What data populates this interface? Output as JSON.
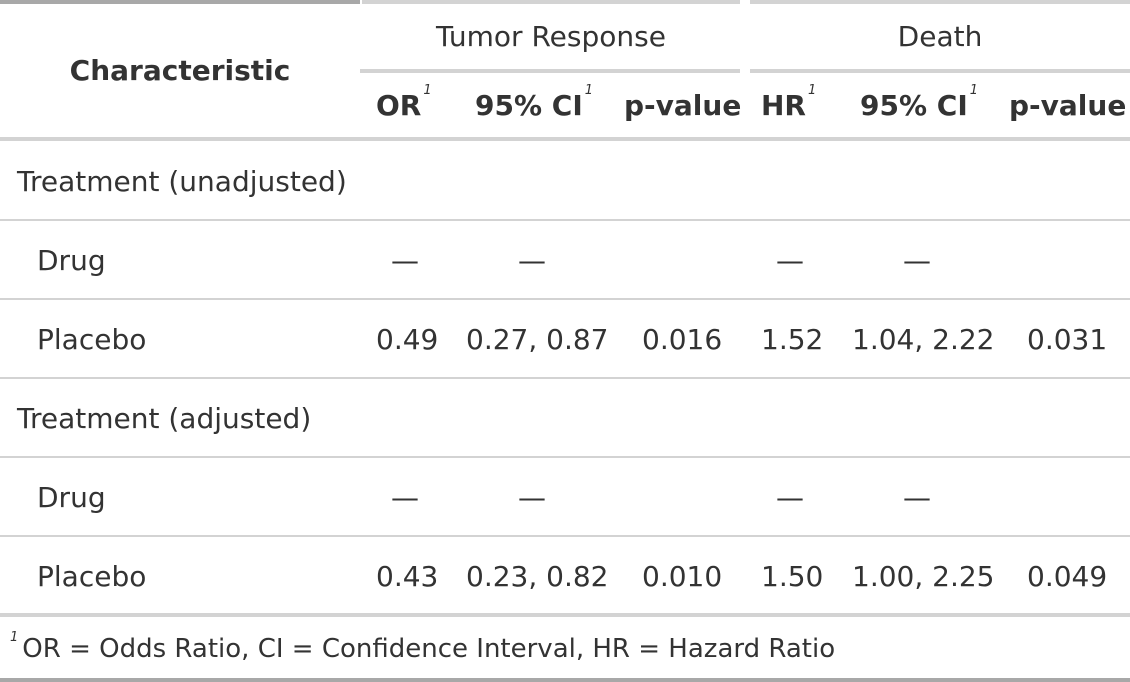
{
  "headers": {
    "characteristic": "Characteristic",
    "group_tumor": "Tumor Response",
    "group_death": "Death",
    "or": "OR",
    "ci1": "95% CI",
    "p1": "p-value",
    "hr": "HR",
    "ci2": "95% CI",
    "p2": "p-value",
    "footnote_mark": "1"
  },
  "rows": [
    {
      "label": "Treatment (unadjusted)"
    },
    {
      "label": "Drug",
      "or": "—",
      "ci1": "—",
      "p1": "",
      "hr": "—",
      "ci2": "—",
      "p2": ""
    },
    {
      "label": "Placebo",
      "or": "0.49",
      "ci1": "0.27, 0.87",
      "p1": "0.016",
      "hr": "1.52",
      "ci2": "1.04, 2.22",
      "p2": "0.031"
    },
    {
      "label": "Treatment (adjusted)"
    },
    {
      "label": "Drug",
      "or": "—",
      "ci1": "—",
      "p1": "",
      "hr": "—",
      "ci2": "—",
      "p2": ""
    },
    {
      "label": "Placebo",
      "or": "0.43",
      "ci1": "0.23, 0.82",
      "p1": "0.010",
      "hr": "1.50",
      "ci2": "1.00, 2.25",
      "p2": "0.049"
    }
  ],
  "footnote": {
    "mark": "1",
    "text": "OR = Odds Ratio, CI = Confidence Interval, HR = Hazard Ratio"
  }
}
